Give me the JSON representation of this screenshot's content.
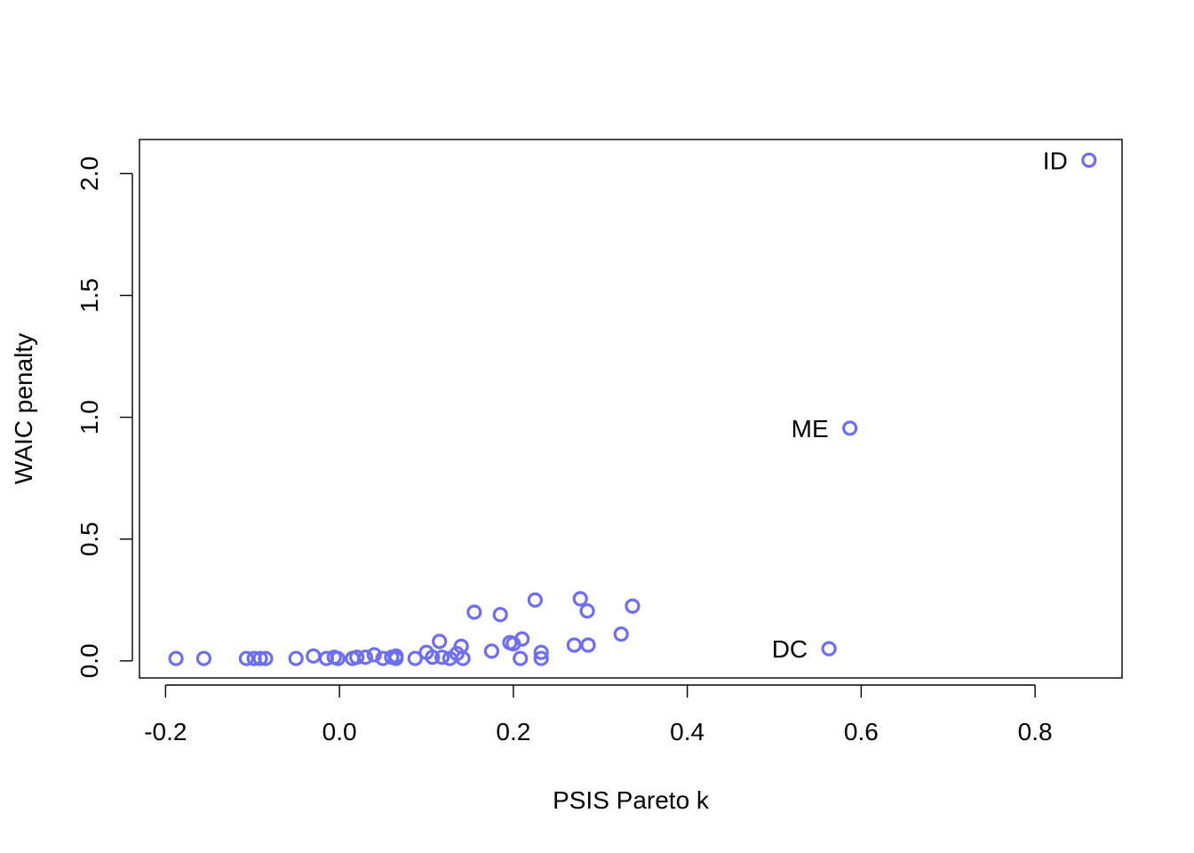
{
  "chart_data": {
    "type": "scatter",
    "title": "",
    "xlabel": "PSIS Pareto k",
    "ylabel": "WAIC penalty",
    "xlim": [
      -0.23,
      0.9
    ],
    "ylim": [
      -0.07,
      2.14
    ],
    "xticks": [
      -0.2,
      0.0,
      0.2,
      0.4,
      0.6,
      0.8
    ],
    "xtick_labels": [
      "-0.2",
      "0.0",
      "0.2",
      "0.4",
      "0.6",
      "0.8"
    ],
    "yticks": [
      0.0,
      0.5,
      1.0,
      1.5,
      2.0
    ],
    "ytick_labels": [
      "0.0",
      "0.5",
      "1.0",
      "1.5",
      "2.0"
    ],
    "grid": false,
    "marker_color": "#6E6EF5",
    "series": [
      {
        "points": [
          {
            "x": 0.862,
            "y": 2.055,
            "label": "ID"
          },
          {
            "x": 0.587,
            "y": 0.955,
            "label": "ME"
          },
          {
            "x": 0.563,
            "y": 0.05,
            "label": "DC"
          },
          {
            "x": -0.188,
            "y": 0.01
          },
          {
            "x": -0.156,
            "y": 0.01
          },
          {
            "x": -0.107,
            "y": 0.01
          },
          {
            "x": -0.098,
            "y": 0.01
          },
          {
            "x": -0.091,
            "y": 0.01
          },
          {
            "x": -0.085,
            "y": 0.01
          },
          {
            "x": -0.05,
            "y": 0.01
          },
          {
            "x": -0.03,
            "y": 0.02
          },
          {
            "x": -0.015,
            "y": 0.01
          },
          {
            "x": -0.006,
            "y": 0.015
          },
          {
            "x": -0.002,
            "y": 0.01
          },
          {
            "x": 0.015,
            "y": 0.01
          },
          {
            "x": 0.02,
            "y": 0.015
          },
          {
            "x": 0.03,
            "y": 0.015
          },
          {
            "x": 0.04,
            "y": 0.025
          },
          {
            "x": 0.05,
            "y": 0.01
          },
          {
            "x": 0.06,
            "y": 0.015
          },
          {
            "x": 0.065,
            "y": 0.01
          },
          {
            "x": 0.065,
            "y": 0.02
          },
          {
            "x": 0.087,
            "y": 0.01
          },
          {
            "x": 0.1,
            "y": 0.035
          },
          {
            "x": 0.107,
            "y": 0.015
          },
          {
            "x": 0.115,
            "y": 0.08
          },
          {
            "x": 0.118,
            "y": 0.015
          },
          {
            "x": 0.127,
            "y": 0.01
          },
          {
            "x": 0.135,
            "y": 0.03
          },
          {
            "x": 0.14,
            "y": 0.06
          },
          {
            "x": 0.142,
            "y": 0.01
          },
          {
            "x": 0.155,
            "y": 0.2
          },
          {
            "x": 0.175,
            "y": 0.04
          },
          {
            "x": 0.185,
            "y": 0.19
          },
          {
            "x": 0.196,
            "y": 0.075
          },
          {
            "x": 0.2,
            "y": 0.07
          },
          {
            "x": 0.208,
            "y": 0.01
          },
          {
            "x": 0.21,
            "y": 0.09
          },
          {
            "x": 0.225,
            "y": 0.25
          },
          {
            "x": 0.232,
            "y": 0.035
          },
          {
            "x": 0.232,
            "y": 0.01
          },
          {
            "x": 0.27,
            "y": 0.065
          },
          {
            "x": 0.277,
            "y": 0.255
          },
          {
            "x": 0.285,
            "y": 0.205
          },
          {
            "x": 0.286,
            "y": 0.065
          },
          {
            "x": 0.324,
            "y": 0.11
          },
          {
            "x": 0.337,
            "y": 0.225
          }
        ]
      }
    ]
  }
}
